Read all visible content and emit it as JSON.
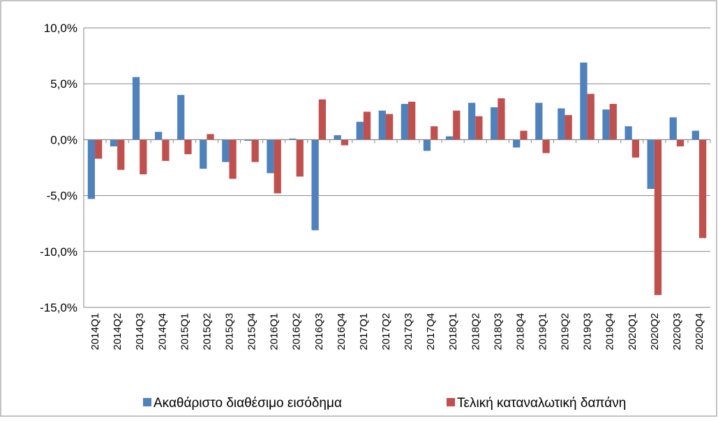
{
  "chart_data": {
    "type": "bar",
    "categories": [
      "2014Q1",
      "2014Q2",
      "2014Q3",
      "2014Q4",
      "2015Q1",
      "2015Q2",
      "2015Q3",
      "2015Q4",
      "2016Q1",
      "2016Q2",
      "2016Q3",
      "2016Q4",
      "2017Q1",
      "2017Q2",
      "2017Q3",
      "2017Q4",
      "2018Q1",
      "2018Q2",
      "2018Q3",
      "2018Q4",
      "2019Q1",
      "2019Q2",
      "2019Q3",
      "2019Q4",
      "2020Q1",
      "2020Q2",
      "2020Q3",
      "2020Q4"
    ],
    "series": [
      {
        "name": "Ακαθάριστο διαθέσιμο εισόδημα",
        "color": "#4f81bd",
        "values": [
          -5.3,
          -0.6,
          5.6,
          0.7,
          4.0,
          -2.6,
          -2.0,
          -0.1,
          -3.0,
          0.1,
          -8.1,
          0.4,
          1.6,
          2.6,
          3.2,
          -1.0,
          0.3,
          3.3,
          2.9,
          -0.7,
          3.3,
          2.8,
          6.9,
          2.7,
          1.2,
          -4.4,
          2.0,
          0.8
        ]
      },
      {
        "name": "Τελική καταναλωτική δαπάνη",
        "color": "#c0504d",
        "values": [
          -1.7,
          -2.7,
          -3.1,
          -1.9,
          -1.3,
          0.5,
          -3.5,
          -2.0,
          -4.8,
          -3.3,
          3.6,
          -0.5,
          2.5,
          2.3,
          3.4,
          1.2,
          2.6,
          2.1,
          3.7,
          0.8,
          -1.2,
          2.2,
          4.1,
          3.2,
          -1.6,
          -13.9,
          -0.6,
          -8.8
        ]
      }
    ],
    "ylim": [
      -15,
      10
    ],
    "yticks": [
      {
        "value": -15,
        "label": "-15,0%"
      },
      {
        "value": -10,
        "label": "-10,0%"
      },
      {
        "value": -5,
        "label": "-5,0%"
      },
      {
        "value": 0,
        "label": "0,0%"
      },
      {
        "value": 5,
        "label": "5,0%"
      },
      {
        "value": 10,
        "label": "10,0%"
      }
    ],
    "grid": true,
    "legend": "bottom"
  }
}
